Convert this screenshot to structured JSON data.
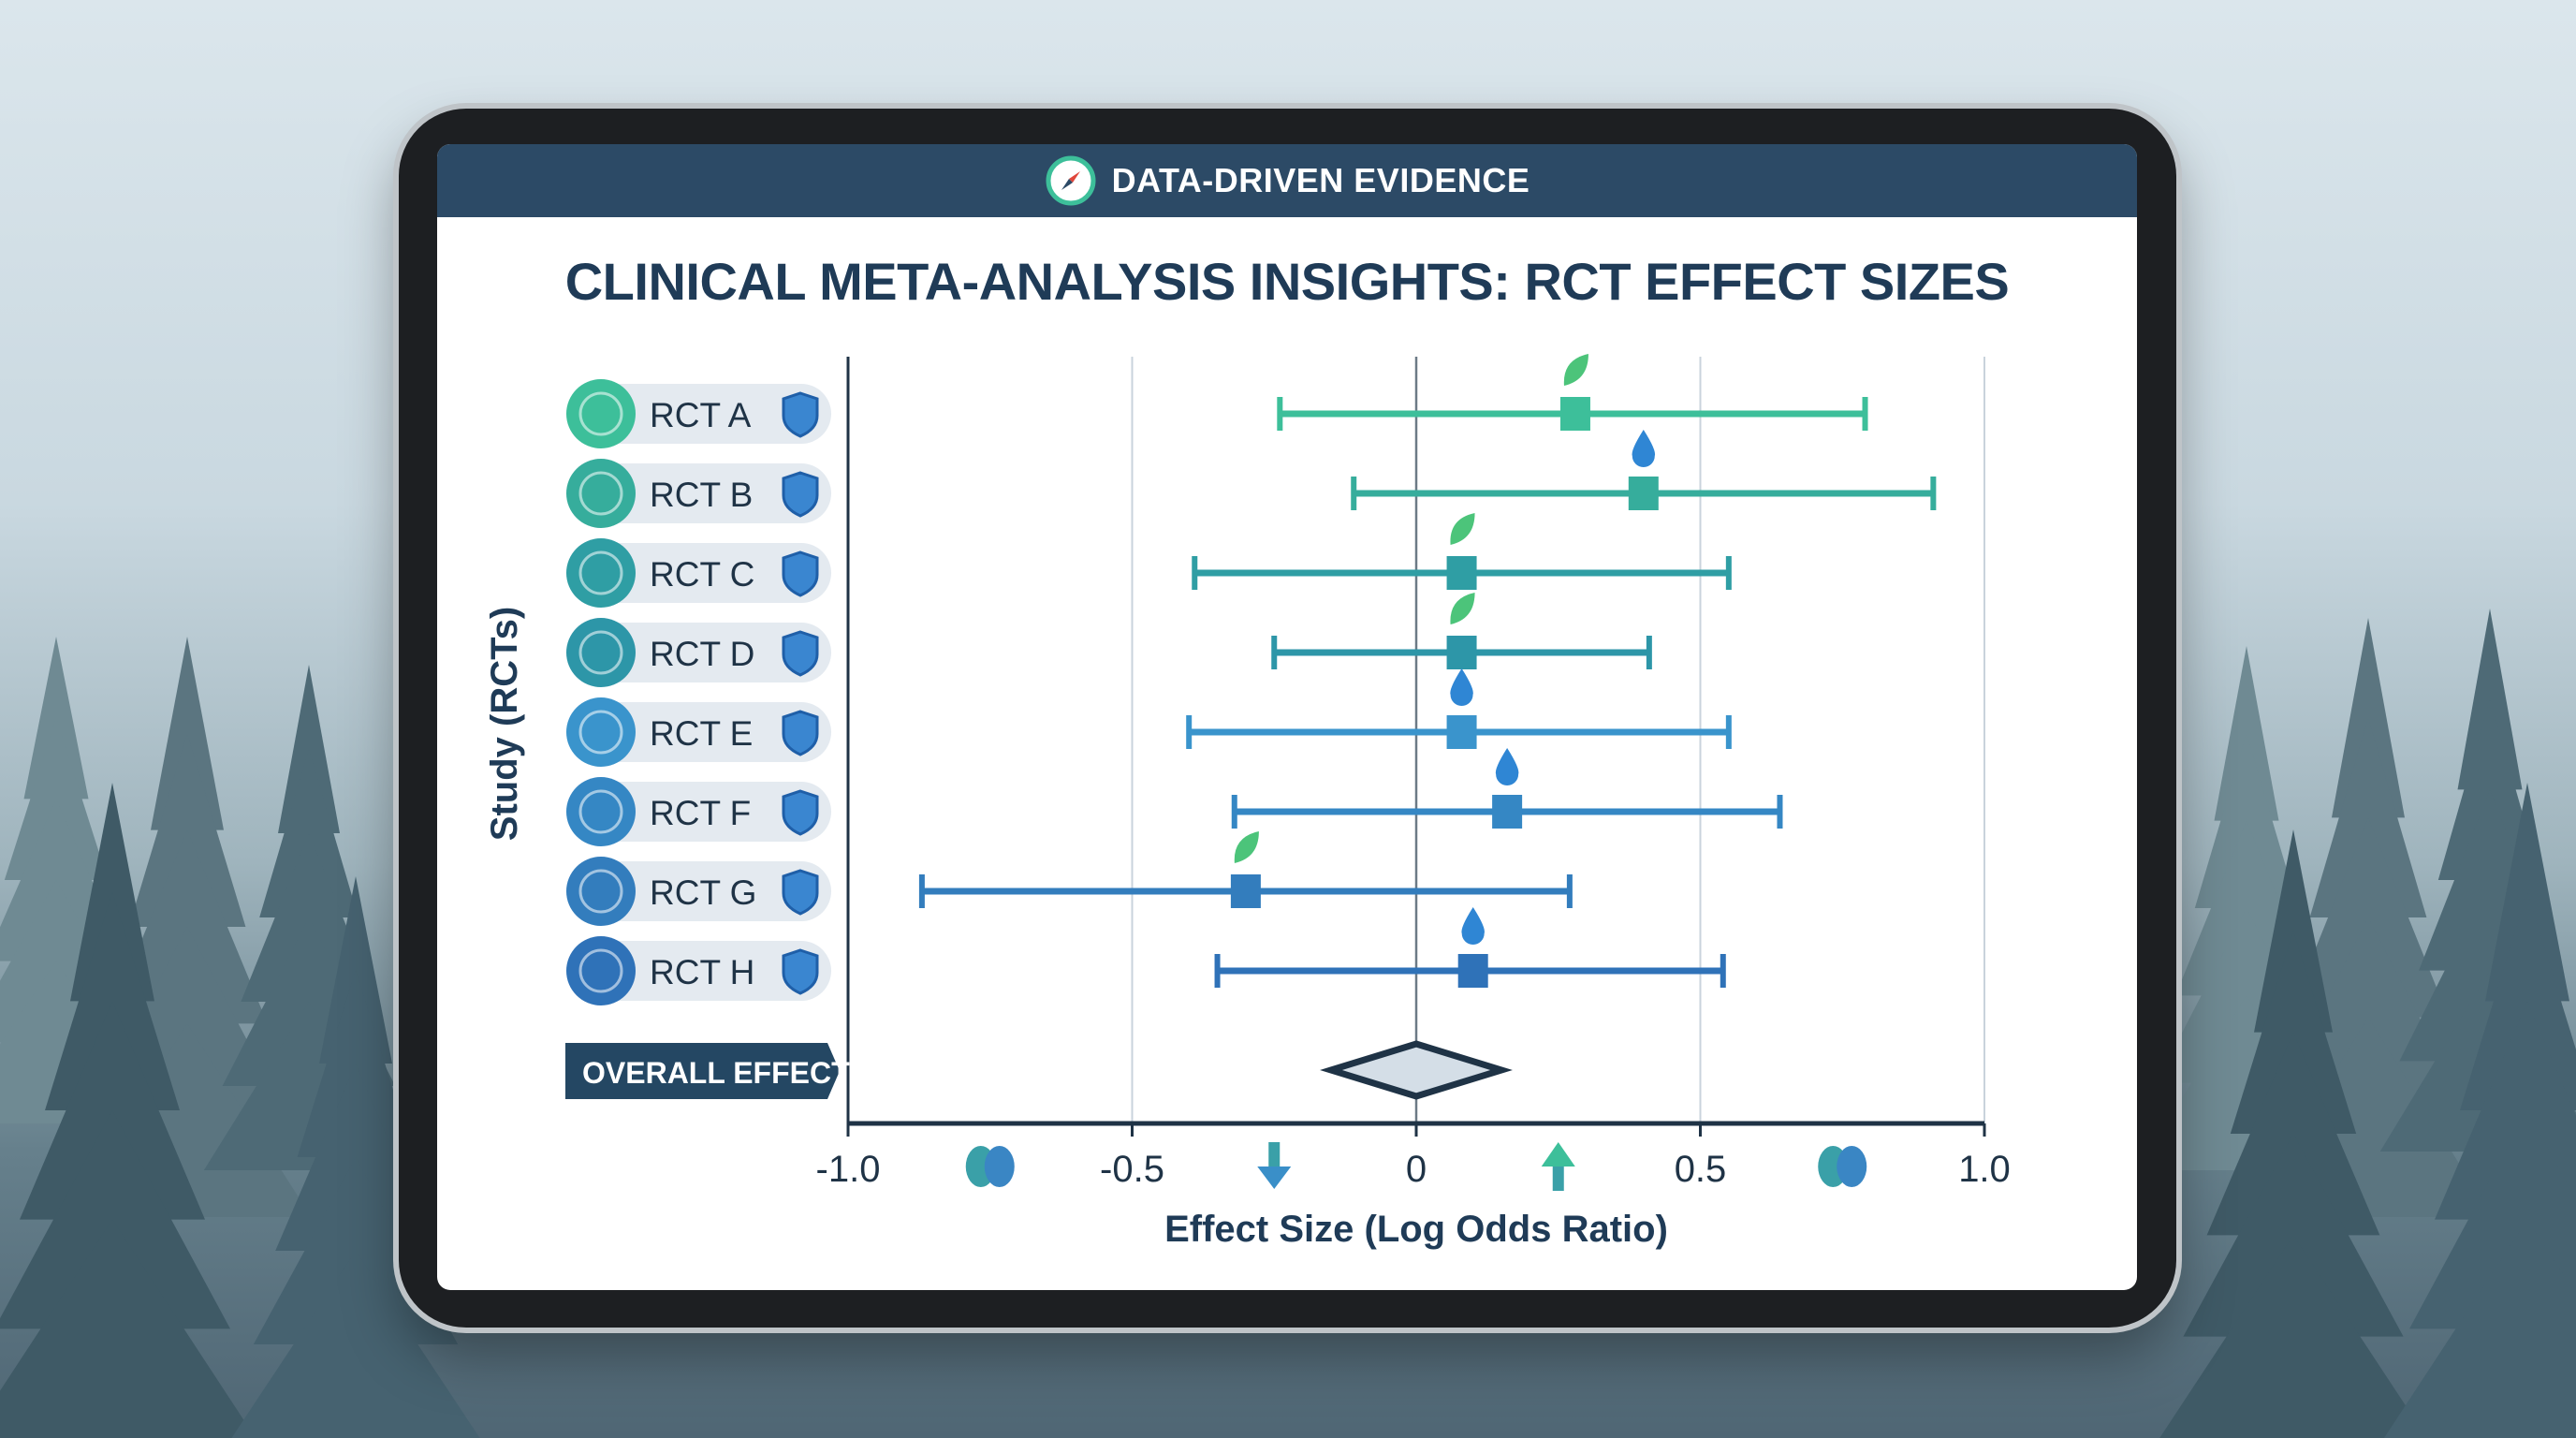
{
  "header": {
    "title": "DATA-DRIVEN EVIDENCE",
    "icon": "compass-icon"
  },
  "title": "CLINICAL META-ANALYSIS INSIGHTS: RCT EFFECT SIZES",
  "overall_label": "OVERALL EFFECT",
  "chart_data": {
    "type": "forest",
    "title": "CLINICAL META-ANALYSIS INSIGHTS: RCT EFFECT SIZES",
    "xlabel": "Effect Size (Log Odds Ratio)",
    "ylabel": "Study (RCTs)",
    "xlim": [
      -1.0,
      1.0
    ],
    "xticks": [
      "-1.0",
      "-0.5",
      "0",
      "0.5",
      "1.0"
    ],
    "xtick_values": [
      -1.0,
      -0.5,
      0,
      0.5,
      1.0
    ],
    "grid": true,
    "studies": [
      {
        "name": "RCT A",
        "estimate": 0.28,
        "lower": -0.24,
        "upper": 0.79,
        "marker": "leaf",
        "icon": "brain-icon",
        "color": "#3dbf9a"
      },
      {
        "name": "RCT B",
        "estimate": 0.4,
        "lower": -0.11,
        "upper": 0.91,
        "marker": "drop",
        "icon": "brain-icon",
        "color": "#36ad9c"
      },
      {
        "name": "RCT C",
        "estimate": 0.08,
        "lower": -0.39,
        "upper": 0.55,
        "marker": "leaf",
        "icon": "brain-icon",
        "color": "#2f9ea4"
      },
      {
        "name": "RCT D",
        "estimate": 0.08,
        "lower": -0.25,
        "upper": 0.41,
        "marker": "leaf",
        "icon": "dna-icon",
        "color": "#2d96a8"
      },
      {
        "name": "RCT E",
        "estimate": 0.08,
        "lower": -0.4,
        "upper": 0.55,
        "marker": "drop",
        "icon": "dna-icon",
        "color": "#3a94cc"
      },
      {
        "name": "RCT F",
        "estimate": 0.16,
        "lower": -0.32,
        "upper": 0.64,
        "marker": "drop",
        "icon": "dna-icon",
        "color": "#3587c4"
      },
      {
        "name": "RCT G",
        "estimate": -0.3,
        "lower": -0.87,
        "upper": 0.27,
        "marker": "leaf",
        "icon": "brain-icon",
        "color": "#337dbd"
      },
      {
        "name": "RCT H",
        "estimate": 0.1,
        "lower": -0.35,
        "upper": 0.54,
        "marker": "drop",
        "icon": "head-icon",
        "color": "#2f72b8"
      }
    ],
    "overall": {
      "label": "OVERALL EFFECT",
      "estimate": 0.0,
      "lower": -0.15,
      "upper": 0.15
    },
    "axis_icons": [
      {
        "icon": "brain-icon",
        "at": -0.75
      },
      {
        "icon": "arrow-down-icon",
        "at": -0.25
      },
      {
        "icon": "arrow-up-icon",
        "at": 0.25
      },
      {
        "icon": "brain-icon",
        "at": 0.75
      }
    ]
  }
}
